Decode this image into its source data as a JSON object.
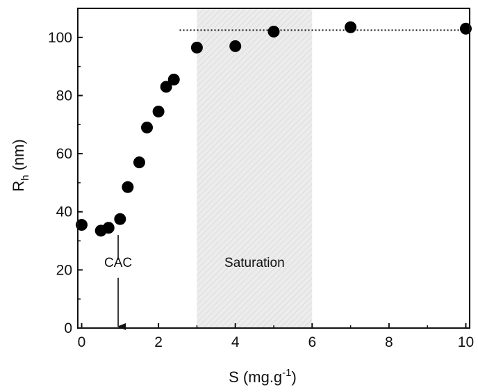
{
  "chart_data": {
    "type": "scatter",
    "xlabel": {
      "main": "S (mg.g",
      "sup": "-1",
      "end": ")"
    },
    "ylabel": {
      "main": "R",
      "sub": "h",
      "end": " (nm)"
    },
    "xlim": [
      -0.1,
      10.1
    ],
    "ylim": [
      0,
      110
    ],
    "xticks": [
      0,
      2,
      4,
      6,
      8,
      10
    ],
    "yticks": [
      0,
      20,
      40,
      60,
      80,
      100
    ],
    "grid": false,
    "series": [
      {
        "marker": "circle",
        "color": "#000000",
        "x": [
          0,
          0.5,
          0.7,
          1.0,
          1.2,
          1.5,
          1.7,
          2.0,
          2.2,
          2.4,
          3.0,
          4.0,
          5.0,
          7.0,
          10.0
        ],
        "y": [
          35.5,
          33.5,
          34.5,
          37.5,
          48.5,
          57,
          69,
          74.5,
          83,
          85.5,
          96.5,
          97,
          102,
          103.5,
          103
        ]
      }
    ],
    "reference_line": {
      "style": "dotted",
      "y": 102.5,
      "x_start": 2.55,
      "x_end": 10.1
    },
    "shaded_region": {
      "x_start": 3.0,
      "x_end": 6.0,
      "label": "Saturation",
      "color": "#ececec"
    },
    "annotation": {
      "label": "CAC",
      "arrow_x": 0.95,
      "arrow_top_y": 32,
      "arrow_bottom_y": 0.5
    }
  }
}
